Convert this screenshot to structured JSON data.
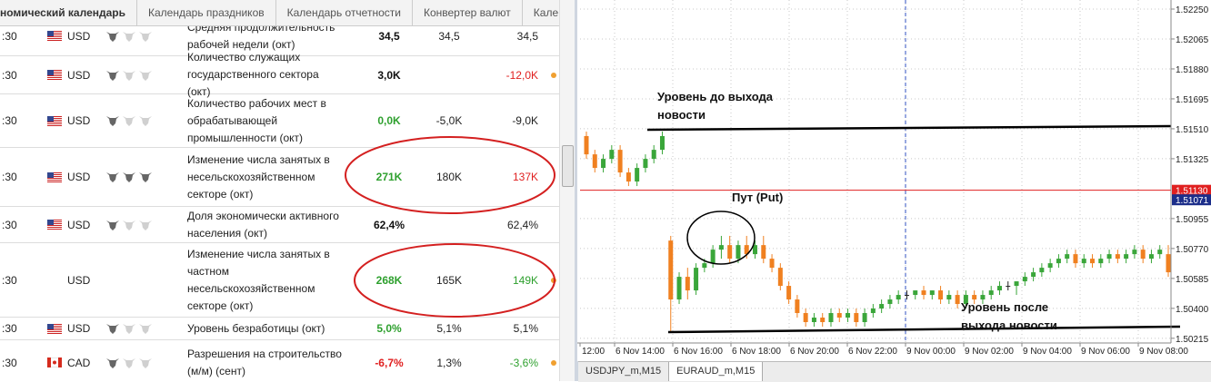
{
  "calendar": {
    "tabs": [
      "номический календарь",
      "Календарь праздников",
      "Календарь отчетности",
      "Конвертер валют",
      "Кале"
    ],
    "rows": [
      {
        "time": ":30",
        "currency": "USD",
        "importance": 1,
        "event": "Средняя продолжительность рабочей недели (окт)",
        "actual": "34,5",
        "forecast": "34,5",
        "previous": "34,5"
      },
      {
        "time": ":30",
        "currency": "USD",
        "importance": 1,
        "event": "Количество служащих государственного сектора (окт)",
        "actual": "3,0K",
        "previous": "-12,0K",
        "previous_color": "#e02020",
        "alert": true
      },
      {
        "time": ":30",
        "currency": "USD",
        "importance": 1,
        "event": "Количество рабочих мест в обрабатывающей промышленности (окт)",
        "actual": "0,0K",
        "actual_color": "#2ea02e",
        "forecast": "-5,0K",
        "previous": "-9,0K"
      },
      {
        "time": ":30",
        "currency": "USD",
        "importance": 3,
        "event": "Изменение числа занятых в несельскохозяйственном секторе (окт)",
        "actual": "271K",
        "actual_color": "#2ea02e",
        "forecast": "180K",
        "previous": "137K",
        "previous_color": "#e02020"
      },
      {
        "time": ":30",
        "currency": "USD",
        "importance": 1,
        "event": "Доля экономически активного населения (окт)",
        "actual": "62,4%",
        "previous": "62,4%"
      },
      {
        "time": ":30",
        "currency": "USD",
        "flag": false,
        "event": "Изменение числа занятых в частном несельскохозяйственном секторе (окт)",
        "actual": "268K",
        "actual_color": "#2ea02e",
        "forecast": "165K",
        "previous": "149K",
        "previous_color": "#2ea02e",
        "alert": true
      },
      {
        "time": ":30",
        "currency": "USD",
        "importance": 1,
        "event": "Уровень безработицы (окт)",
        "actual": "5,0%",
        "actual_color": "#2ea02e",
        "forecast": "5,1%",
        "previous": "5,1%"
      },
      {
        "time": ":30",
        "currency": "CAD",
        "importance": 1,
        "event": "Разрешения на строительство (м/м) (сент)",
        "actual": "-6,7%",
        "actual_color": "#e02020",
        "forecast": "1,3%",
        "previous": "-3,6%",
        "previous_color": "#2ea02e",
        "alert": true
      }
    ]
  },
  "chart": {
    "type": "candlestick",
    "ylim": [
      1.50186,
      1.52306
    ],
    "yticks": [
      {
        "value": 1.5225,
        "label": "1.52250"
      },
      {
        "value": 1.52065,
        "label": "1.52065"
      },
      {
        "value": 1.5188,
        "label": "1.51880"
      },
      {
        "value": 1.51695,
        "label": "1.51695"
      },
      {
        "value": 1.5151,
        "label": "1.51510"
      },
      {
        "value": 1.51325,
        "label": "1.51325"
      },
      {
        "value": 1.50955,
        "label": "1.50955"
      },
      {
        "value": 1.5077,
        "label": "1.50770"
      },
      {
        "value": 1.50585,
        "label": "1.50585"
      },
      {
        "value": 1.504,
        "label": "1.50400"
      },
      {
        "value": 1.50215,
        "label": "1.50215"
      }
    ],
    "price_lines": [
      {
        "value": 1.5113,
        "label": "1.51130",
        "color": "#e02020",
        "line": true
      },
      {
        "value": 1.51071,
        "label": "1.51071",
        "color": "#1c2e8a"
      }
    ],
    "xticks": [
      "12:00",
      "6 Nov 14:00",
      "6 Nov 16:00",
      "6 Nov 18:00",
      "6 Nov 20:00",
      "6 Nov 22:00",
      "9 Nov 00:00",
      "9 Nov 02:00",
      "9 Nov 04:00",
      "9 Nov 06:00",
      "9 Nov 08:00"
    ],
    "grid": true,
    "up_color": "#3aa63a",
    "down_color": "#f08020",
    "candles": [
      [
        1.51465,
        1.51493,
        1.51324,
        1.51352
      ],
      [
        1.51352,
        1.5138,
        1.5124,
        1.51268
      ],
      [
        1.51268,
        1.51352,
        1.5124,
        1.51324
      ],
      [
        1.51324,
        1.51409,
        1.51296,
        1.5138
      ],
      [
        1.5138,
        1.51409,
        1.51212,
        1.5124
      ],
      [
        1.5124,
        1.51268,
        1.51156,
        1.51184
      ],
      [
        1.51184,
        1.51296,
        1.51156,
        1.51268
      ],
      [
        1.51268,
        1.51352,
        1.5124,
        1.51324
      ],
      [
        1.51324,
        1.51409,
        1.51296,
        1.5138
      ],
      [
        1.5138,
        1.51493,
        1.51352,
        1.51465
      ],
      [
        1.50819,
        1.50848,
        1.50259,
        1.50455
      ],
      [
        1.50455,
        1.50623,
        1.50427,
        1.50595
      ],
      [
        1.50595,
        1.50651,
        1.50455,
        1.50511
      ],
      [
        1.50511,
        1.50679,
        1.50483,
        1.50651
      ],
      [
        1.50651,
        1.50707,
        1.50623,
        1.50679
      ],
      [
        1.50679,
        1.50791,
        1.50651,
        1.50763
      ],
      [
        1.50763,
        1.50848,
        1.50707,
        1.50791
      ],
      [
        1.50791,
        1.50848,
        1.50679,
        1.50707
      ],
      [
        1.50707,
        1.50819,
        1.50679,
        1.50791
      ],
      [
        1.50791,
        1.50848,
        1.50707,
        1.50735
      ],
      [
        1.50735,
        1.50819,
        1.50707,
        1.50791
      ],
      [
        1.50791,
        1.50848,
        1.50679,
        1.50707
      ],
      [
        1.50707,
        1.50735,
        1.50623,
        1.50651
      ],
      [
        1.50651,
        1.50679,
        1.50511,
        1.50539
      ],
      [
        1.50539,
        1.50567,
        1.50427,
        1.50455
      ],
      [
        1.50455,
        1.50483,
        1.50343,
        1.50371
      ],
      [
        1.50371,
        1.50399,
        1.50287,
        1.50315
      ],
      [
        1.50315,
        1.50371,
        1.50287,
        1.50343
      ],
      [
        1.50343,
        1.50371,
        1.50287,
        1.50315
      ],
      [
        1.50315,
        1.50399,
        1.50287,
        1.50371
      ],
      [
        1.50371,
        1.50399,
        1.50315,
        1.50343
      ],
      [
        1.50343,
        1.50399,
        1.50315,
        1.50371
      ],
      [
        1.50371,
        1.50399,
        1.50287,
        1.50315
      ],
      [
        1.50315,
        1.50399,
        1.50287,
        1.50371
      ],
      [
        1.50371,
        1.50427,
        1.50343,
        1.50399
      ],
      [
        1.50399,
        1.50455,
        1.50371,
        1.50427
      ],
      [
        1.50427,
        1.50483,
        1.50399,
        1.50455
      ],
      [
        1.50455,
        1.50511,
        1.50427,
        1.50483
      ],
      [
        1.50483,
        1.50511,
        1.50455,
        1.50483
      ],
      [
        1.50483,
        1.50511,
        1.50455,
        1.50511
      ],
      [
        1.50511,
        1.50539,
        1.50455,
        1.50483
      ],
      [
        1.50483,
        1.50511,
        1.50455,
        1.50511
      ],
      [
        1.50511,
        1.50539,
        1.50427,
        1.50455
      ],
      [
        1.50455,
        1.50511,
        1.50427,
        1.50483
      ],
      [
        1.50483,
        1.50511,
        1.50399,
        1.50427
      ],
      [
        1.50427,
        1.50511,
        1.50399,
        1.50483
      ],
      [
        1.50483,
        1.50511,
        1.50427,
        1.50455
      ],
      [
        1.50455,
        1.50511,
        1.50427,
        1.50483
      ],
      [
        1.50483,
        1.50539,
        1.50455,
        1.50511
      ],
      [
        1.50511,
        1.50567,
        1.50483,
        1.50539
      ],
      [
        1.50539,
        1.50567,
        1.50511,
        1.50539
      ],
      [
        1.50539,
        1.50567,
        1.50483,
        1.50567
      ],
      [
        1.50567,
        1.50623,
        1.50539,
        1.50595
      ],
      [
        1.50595,
        1.50651,
        1.50567,
        1.50623
      ],
      [
        1.50623,
        1.50679,
        1.50595,
        1.50651
      ],
      [
        1.50651,
        1.50707,
        1.50623,
        1.50679
      ],
      [
        1.50679,
        1.50735,
        1.50651,
        1.50707
      ],
      [
        1.50707,
        1.50763,
        1.50679,
        1.50735
      ],
      [
        1.50735,
        1.50763,
        1.50651,
        1.50679
      ],
      [
        1.50679,
        1.50735,
        1.50651,
        1.50707
      ],
      [
        1.50707,
        1.50735,
        1.50651,
        1.50679
      ],
      [
        1.50679,
        1.50735,
        1.50651,
        1.50707
      ],
      [
        1.50707,
        1.50763,
        1.50679,
        1.50735
      ],
      [
        1.50735,
        1.50763,
        1.50679,
        1.50707
      ],
      [
        1.50707,
        1.50763,
        1.50679,
        1.50735
      ],
      [
        1.50735,
        1.50791,
        1.50707,
        1.50763
      ],
      [
        1.50763,
        1.50791,
        1.50679,
        1.50707
      ],
      [
        1.50707,
        1.50763,
        1.50679,
        1.50735
      ],
      [
        1.50735,
        1.50791,
        1.50707,
        1.50763
      ],
      [
        1.50735,
        1.50791,
        1.50595,
        1.50623
      ]
    ],
    "annotations": [
      "Уровень до выхода новости",
      "Пут (Put)",
      "Уровень после выхода новости"
    ],
    "tabs": [
      "USDJPY_m,M15",
      "EURAUD_m,M15"
    ]
  }
}
